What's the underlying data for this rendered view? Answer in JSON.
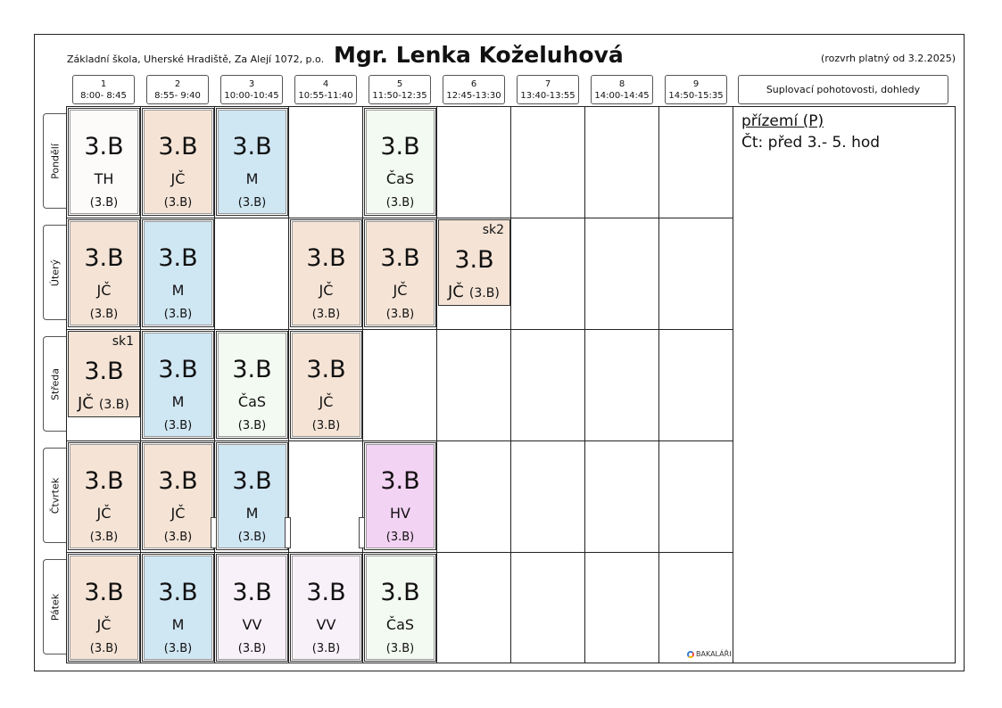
{
  "header": {
    "school": "Základní škola, Uherské Hradiště, Za Alejí 1072, p.o.",
    "teacher": "Mgr. Lenka Koželuhová",
    "validity": "(rozvrh platný od 3.2.2025)"
  },
  "periods": [
    {
      "num": "1",
      "time": "8:00- 8:45"
    },
    {
      "num": "2",
      "time": "8:55- 9:40"
    },
    {
      "num": "3",
      "time": "10:00-10:45"
    },
    {
      "num": "4",
      "time": "10:55-11:40"
    },
    {
      "num": "5",
      "time": "11:50-12:35"
    },
    {
      "num": "6",
      "time": "12:45-13:30"
    },
    {
      "num": "7",
      "time": "13:40-13:55"
    },
    {
      "num": "8",
      "time": "14:00-14:45"
    },
    {
      "num": "9",
      "time": "14:50-15:35"
    }
  ],
  "supl_header": "Suplovací pohotovosti, dohledy",
  "days": [
    "Pondělí",
    "Úterý",
    "Středa",
    "Čtvrtek",
    "Pátek"
  ],
  "lessons": {
    "mon": [
      {
        "cls": "3.B",
        "subj": "TH",
        "grp": "(3.B)",
        "color": "#fdfafa"
      },
      {
        "cls": "3.B",
        "subj": "JČ",
        "grp": "(3.B)",
        "color": "#f5e4d6"
      },
      {
        "cls": "3.B",
        "subj": "M",
        "grp": "(3.B)",
        "color": "#cfe6f3"
      },
      {
        "cls": "3.B",
        "subj": "ČaS",
        "grp": "(3.B)",
        "color": "#f3faf1"
      }
    ],
    "tue": [
      {
        "cls": "3.B",
        "subj": "JČ",
        "grp": "(3.B)",
        "color": "#f5e4d6"
      },
      {
        "cls": "3.B",
        "subj": "M",
        "grp": "(3.B)",
        "color": "#cfe6f3"
      },
      {
        "cls": "3.B",
        "subj": "JČ",
        "grp": "(3.B)",
        "color": "#f5e4d6"
      },
      {
        "cls": "3.B",
        "subj": "JČ",
        "grp": "(3.B)",
        "color": "#f5e4d6"
      },
      {
        "tag": "sk2",
        "cls": "3.B",
        "subj": "JČ",
        "grp": "(3.B)",
        "color": "#f5e4d6"
      }
    ],
    "wed": [
      {
        "tag": "sk1",
        "cls": "3.B",
        "subj": "JČ",
        "grp": "(3.B)",
        "color": "#f5e4d6"
      },
      {
        "cls": "3.B",
        "subj": "M",
        "grp": "(3.B)",
        "color": "#cfe6f3"
      },
      {
        "cls": "3.B",
        "subj": "ČaS",
        "grp": "(3.B)",
        "color": "#f3faf1"
      },
      {
        "cls": "3.B",
        "subj": "JČ",
        "grp": "(3.B)",
        "color": "#f5e4d6"
      }
    ],
    "thu": [
      {
        "cls": "3.B",
        "subj": "JČ",
        "grp": "(3.B)",
        "color": "#f5e4d6"
      },
      {
        "cls": "3.B",
        "subj": "JČ",
        "grp": "(3.B)",
        "color": "#f5e4d6"
      },
      {
        "cls": "3.B",
        "subj": "M",
        "grp": "(3.B)",
        "color": "#cfe6f3"
      },
      {
        "cls": "3.B",
        "subj": "HV",
        "grp": "(3.B)",
        "color": "#f3d3f3"
      }
    ],
    "fri": [
      {
        "cls": "3.B",
        "subj": "JČ",
        "grp": "(3.B)",
        "color": "#f5e4d6"
      },
      {
        "cls": "3.B",
        "subj": "M",
        "grp": "(3.B)",
        "color": "#cfe6f3"
      },
      {
        "cls": "3.B",
        "subj": "VV",
        "grp": "(3.B)",
        "color": "#f9f1f9"
      },
      {
        "cls": "3.B",
        "subj": "VV",
        "grp": "(3.B)",
        "color": "#f9f1f9"
      },
      {
        "cls": "3.B",
        "subj": "ČaS",
        "grp": "(3.B)",
        "color": "#f3faf1"
      }
    ]
  },
  "duty": {
    "heading": "přízemí (P)",
    "line": "Čt: před 3.- 5. hod"
  },
  "footer_logo": "BAKALÁŘI"
}
